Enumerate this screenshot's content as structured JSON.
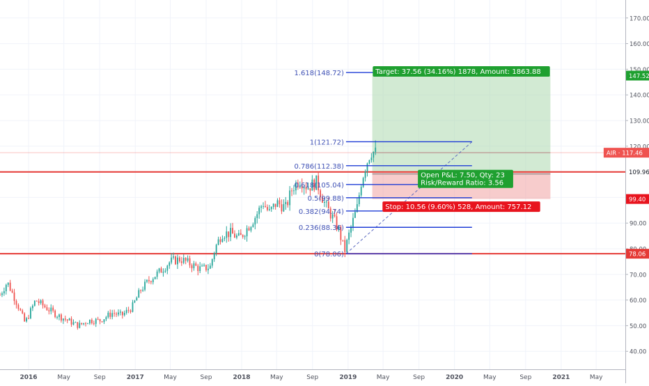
{
  "chart_data": {
    "type": "candlestick",
    "symbol": "AIR",
    "last_price": 117.46,
    "y_axis": {
      "ylim": [
        33.0,
        177.0
      ],
      "ticks": [
        40,
        50,
        60,
        70,
        80,
        90,
        100,
        110,
        120,
        130,
        140,
        150,
        160,
        170
      ],
      "tick_labels": [
        "40.00",
        "50.00",
        "60.00",
        "70.00",
        "80.00",
        "90.00",
        "100.00",
        "110.00",
        "120.00",
        "130.00",
        "140.00",
        "150.00",
        "160.00",
        "170.00"
      ]
    },
    "x_axis": {
      "range": [
        "2015-09-25",
        "2021-08-09"
      ],
      "ticks": [
        {
          "date": "2016-01-01",
          "label": "2016"
        },
        {
          "date": "2016-05-01",
          "label": "May"
        },
        {
          "date": "2016-09-01",
          "label": "Sep"
        },
        {
          "date": "2017-01-01",
          "label": "2017"
        },
        {
          "date": "2017-05-01",
          "label": "May"
        },
        {
          "date": "2017-09-01",
          "label": "Sep"
        },
        {
          "date": "2018-01-01",
          "label": "2018"
        },
        {
          "date": "2018-05-01",
          "label": "May"
        },
        {
          "date": "2018-09-01",
          "label": "Sep"
        },
        {
          "date": "2019-01-01",
          "label": "2019"
        },
        {
          "date": "2019-05-01",
          "label": "May"
        },
        {
          "date": "2019-09-01",
          "label": "Sep"
        },
        {
          "date": "2020-01-01",
          "label": "2020"
        },
        {
          "date": "2020-05-01",
          "label": "May"
        },
        {
          "date": "2020-09-01",
          "label": "Sep"
        },
        {
          "date": "2021-01-01",
          "label": "2021"
        },
        {
          "date": "2021-05-01",
          "label": "May"
        }
      ]
    },
    "series_path": [
      {
        "date": "2015-09-25",
        "value": 62
      },
      {
        "date": "2015-10-20",
        "value": 67
      },
      {
        "date": "2015-11-25",
        "value": 58
      },
      {
        "date": "2015-12-20",
        "value": 51
      },
      {
        "date": "2016-01-25",
        "value": 60
      },
      {
        "date": "2016-03-01",
        "value": 57
      },
      {
        "date": "2016-04-10",
        "value": 54
      },
      {
        "date": "2016-05-15",
        "value": 52
      },
      {
        "date": "2016-06-20",
        "value": 50
      },
      {
        "date": "2016-07-25",
        "value": 52
      },
      {
        "date": "2016-09-01",
        "value": 52
      },
      {
        "date": "2016-10-15",
        "value": 55
      },
      {
        "date": "2016-11-15",
        "value": 54
      },
      {
        "date": "2016-12-20",
        "value": 57
      },
      {
        "date": "2017-01-20",
        "value": 64
      },
      {
        "date": "2017-02-20",
        "value": 68
      },
      {
        "date": "2017-03-25",
        "value": 71
      },
      {
        "date": "2017-05-01",
        "value": 75
      },
      {
        "date": "2017-06-05",
        "value": 76
      },
      {
        "date": "2017-07-10",
        "value": 74
      },
      {
        "date": "2017-08-15",
        "value": 72
      },
      {
        "date": "2017-09-15",
        "value": 73
      },
      {
        "date": "2017-10-01",
        "value": 80
      },
      {
        "date": "2017-10-25",
        "value": 86
      },
      {
        "date": "2017-11-25",
        "value": 86
      },
      {
        "date": "2017-12-25",
        "value": 84
      },
      {
        "date": "2018-01-20",
        "value": 88
      },
      {
        "date": "2018-02-20",
        "value": 93
      },
      {
        "date": "2018-03-15",
        "value": 98
      },
      {
        "date": "2018-04-05",
        "value": 94
      },
      {
        "date": "2018-05-01",
        "value": 98
      },
      {
        "date": "2018-06-01",
        "value": 96
      },
      {
        "date": "2018-06-25",
        "value": 104
      },
      {
        "date": "2018-07-20",
        "value": 107
      },
      {
        "date": "2018-08-15",
        "value": 104
      },
      {
        "date": "2018-09-15",
        "value": 106
      },
      {
        "date": "2018-10-15",
        "value": 97
      },
      {
        "date": "2018-11-10",
        "value": 92
      },
      {
        "date": "2018-12-01",
        "value": 87
      },
      {
        "date": "2018-12-20",
        "value": 79
      },
      {
        "date": "2019-01-10",
        "value": 88
      },
      {
        "date": "2019-02-01",
        "value": 96
      },
      {
        "date": "2019-02-15",
        "value": 106
      },
      {
        "date": "2019-03-01",
        "value": 112
      },
      {
        "date": "2019-03-20",
        "value": 118
      },
      {
        "date": "2019-04-05",
        "value": 117.46
      }
    ],
    "horizontal_lines": [
      {
        "value": 109.96,
        "color": "#e53935",
        "label": "109.96"
      },
      {
        "value": 78.06,
        "color": "#e53935",
        "label": "78.06"
      }
    ],
    "fibonacci": {
      "start_date": "2018-12-25",
      "end_date": "2020-03-01",
      "trend_from": {
        "date": "2018-12-25",
        "value": 78.06
      },
      "trend_to": {
        "date": "2020-03-01",
        "value": 121.72
      },
      "levels": [
        {
          "label": "1.618(148.72)",
          "value": 148.72
        },
        {
          "label": "1(121.72)",
          "value": 121.72
        },
        {
          "label": "0.786(112.38)",
          "value": 112.38
        },
        {
          "label": "0.618(105.04)",
          "value": 105.04
        },
        {
          "label": "0.5(99.88)",
          "value": 99.88
        },
        {
          "label": "0.382(94.74)",
          "value": 94.74
        },
        {
          "label": "0.236(88.36)",
          "value": 88.36
        },
        {
          "label": "0(78.06)",
          "value": 78.06
        }
      ]
    },
    "position": {
      "start_date": "2019-03-25",
      "end_date": "2020-11-25",
      "entry": 109.96,
      "target": 147.52,
      "stop": 99.4,
      "target_label": "Target: 37.56 (34.16%) 1878, Amount: 1863.88",
      "stop_label": "Stop: 10.56 (9.60%) 528, Amount: 757.12",
      "pnl_label": "Open P&L: 7.50, Qty: 23",
      "rr_label": "Risk/Reward Ratio: 3.56",
      "target_price_label": "147.52",
      "stop_price_label": "99.40"
    },
    "price_badge": {
      "label": "AIR · 117.46",
      "value": 117.46
    }
  }
}
